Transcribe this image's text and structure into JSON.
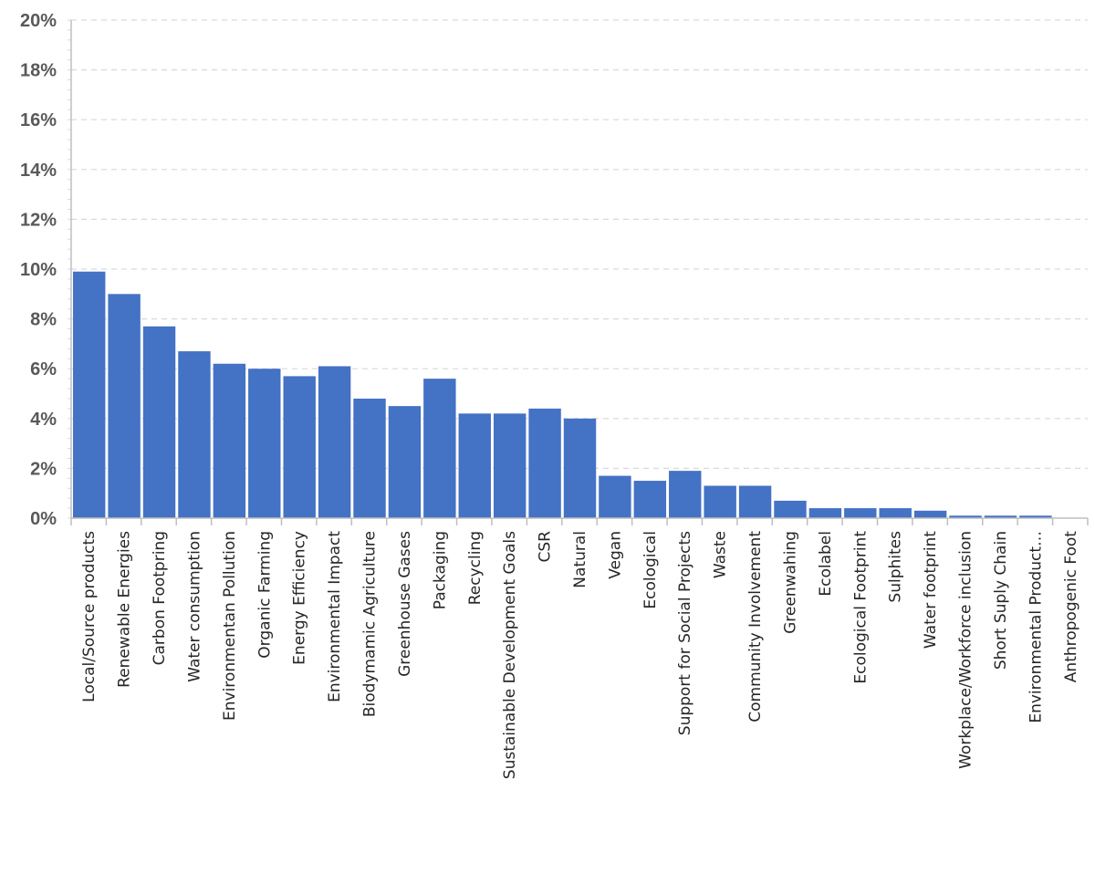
{
  "chart_data": {
    "type": "bar",
    "ylim": [
      0,
      0.2
    ],
    "y_ticks": [
      "0%",
      "2%",
      "4%",
      "6%",
      "8%",
      "10%",
      "12%",
      "14%",
      "16%",
      "18%",
      "20%"
    ],
    "grid": true,
    "bar_color": "#4472C4",
    "categories": [
      "Local/Source products",
      "Renewable Energies",
      "Carbon Footpring",
      "Water consumption",
      "Environmentan Pollution",
      "Organic Farming",
      "Energy Efficiency",
      "Environmental Impact",
      "Biodymamic Agriculture",
      "Greenhouse Gases",
      "Packaging",
      "Recycling",
      "Sustainable Development Goals",
      "CSR",
      "Natural",
      "Vegan",
      "Ecological",
      "Support for Social Projects",
      "Waste",
      "Community Involvement",
      "Greenwahing",
      "Ecolabel",
      "Ecological Footprint",
      "Sulphites",
      "Water footprint",
      "Workplace/Workforce inclusion",
      "Short Suply Chain",
      "Environmental Product…",
      "Anthropogenic Foot"
    ],
    "values": [
      0.099,
      0.09,
      0.077,
      0.067,
      0.062,
      0.06,
      0.057,
      0.061,
      0.048,
      0.045,
      0.056,
      0.042,
      0.042,
      0.044,
      0.04,
      0.017,
      0.015,
      0.019,
      0.013,
      0.013,
      0.007,
      0.004,
      0.004,
      0.004,
      0.003,
      0.001,
      0.001,
      0.001,
      0.0
    ]
  }
}
